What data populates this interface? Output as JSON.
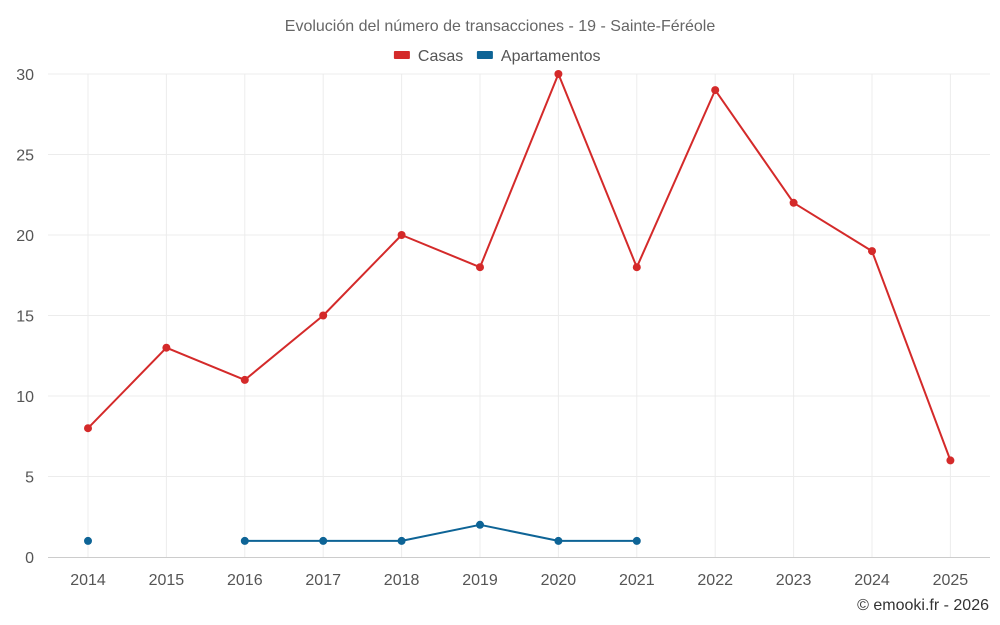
{
  "chart_data": {
    "type": "line",
    "title": "Evolución del número de transacciones - 19 - Sainte-Féréole",
    "x": [
      2014,
      2015,
      2016,
      2017,
      2018,
      2019,
      2020,
      2021,
      2022,
      2023,
      2024,
      2025
    ],
    "ylim": [
      0,
      30
    ],
    "yticks": [
      0,
      5,
      10,
      15,
      20,
      25,
      30
    ],
    "grid": true,
    "legend_position": "top-center",
    "series": [
      {
        "name": "Casas",
        "color": "#d42a2a",
        "values": [
          8,
          13,
          11,
          15,
          20,
          18,
          30,
          18,
          29,
          22,
          19,
          6
        ]
      },
      {
        "name": "Apartamentos",
        "color": "#0e6496",
        "values": [
          1,
          null,
          1,
          1,
          1,
          2,
          1,
          1,
          null,
          null,
          null,
          null
        ]
      }
    ]
  },
  "credit": "© emooki.fr - 2026"
}
